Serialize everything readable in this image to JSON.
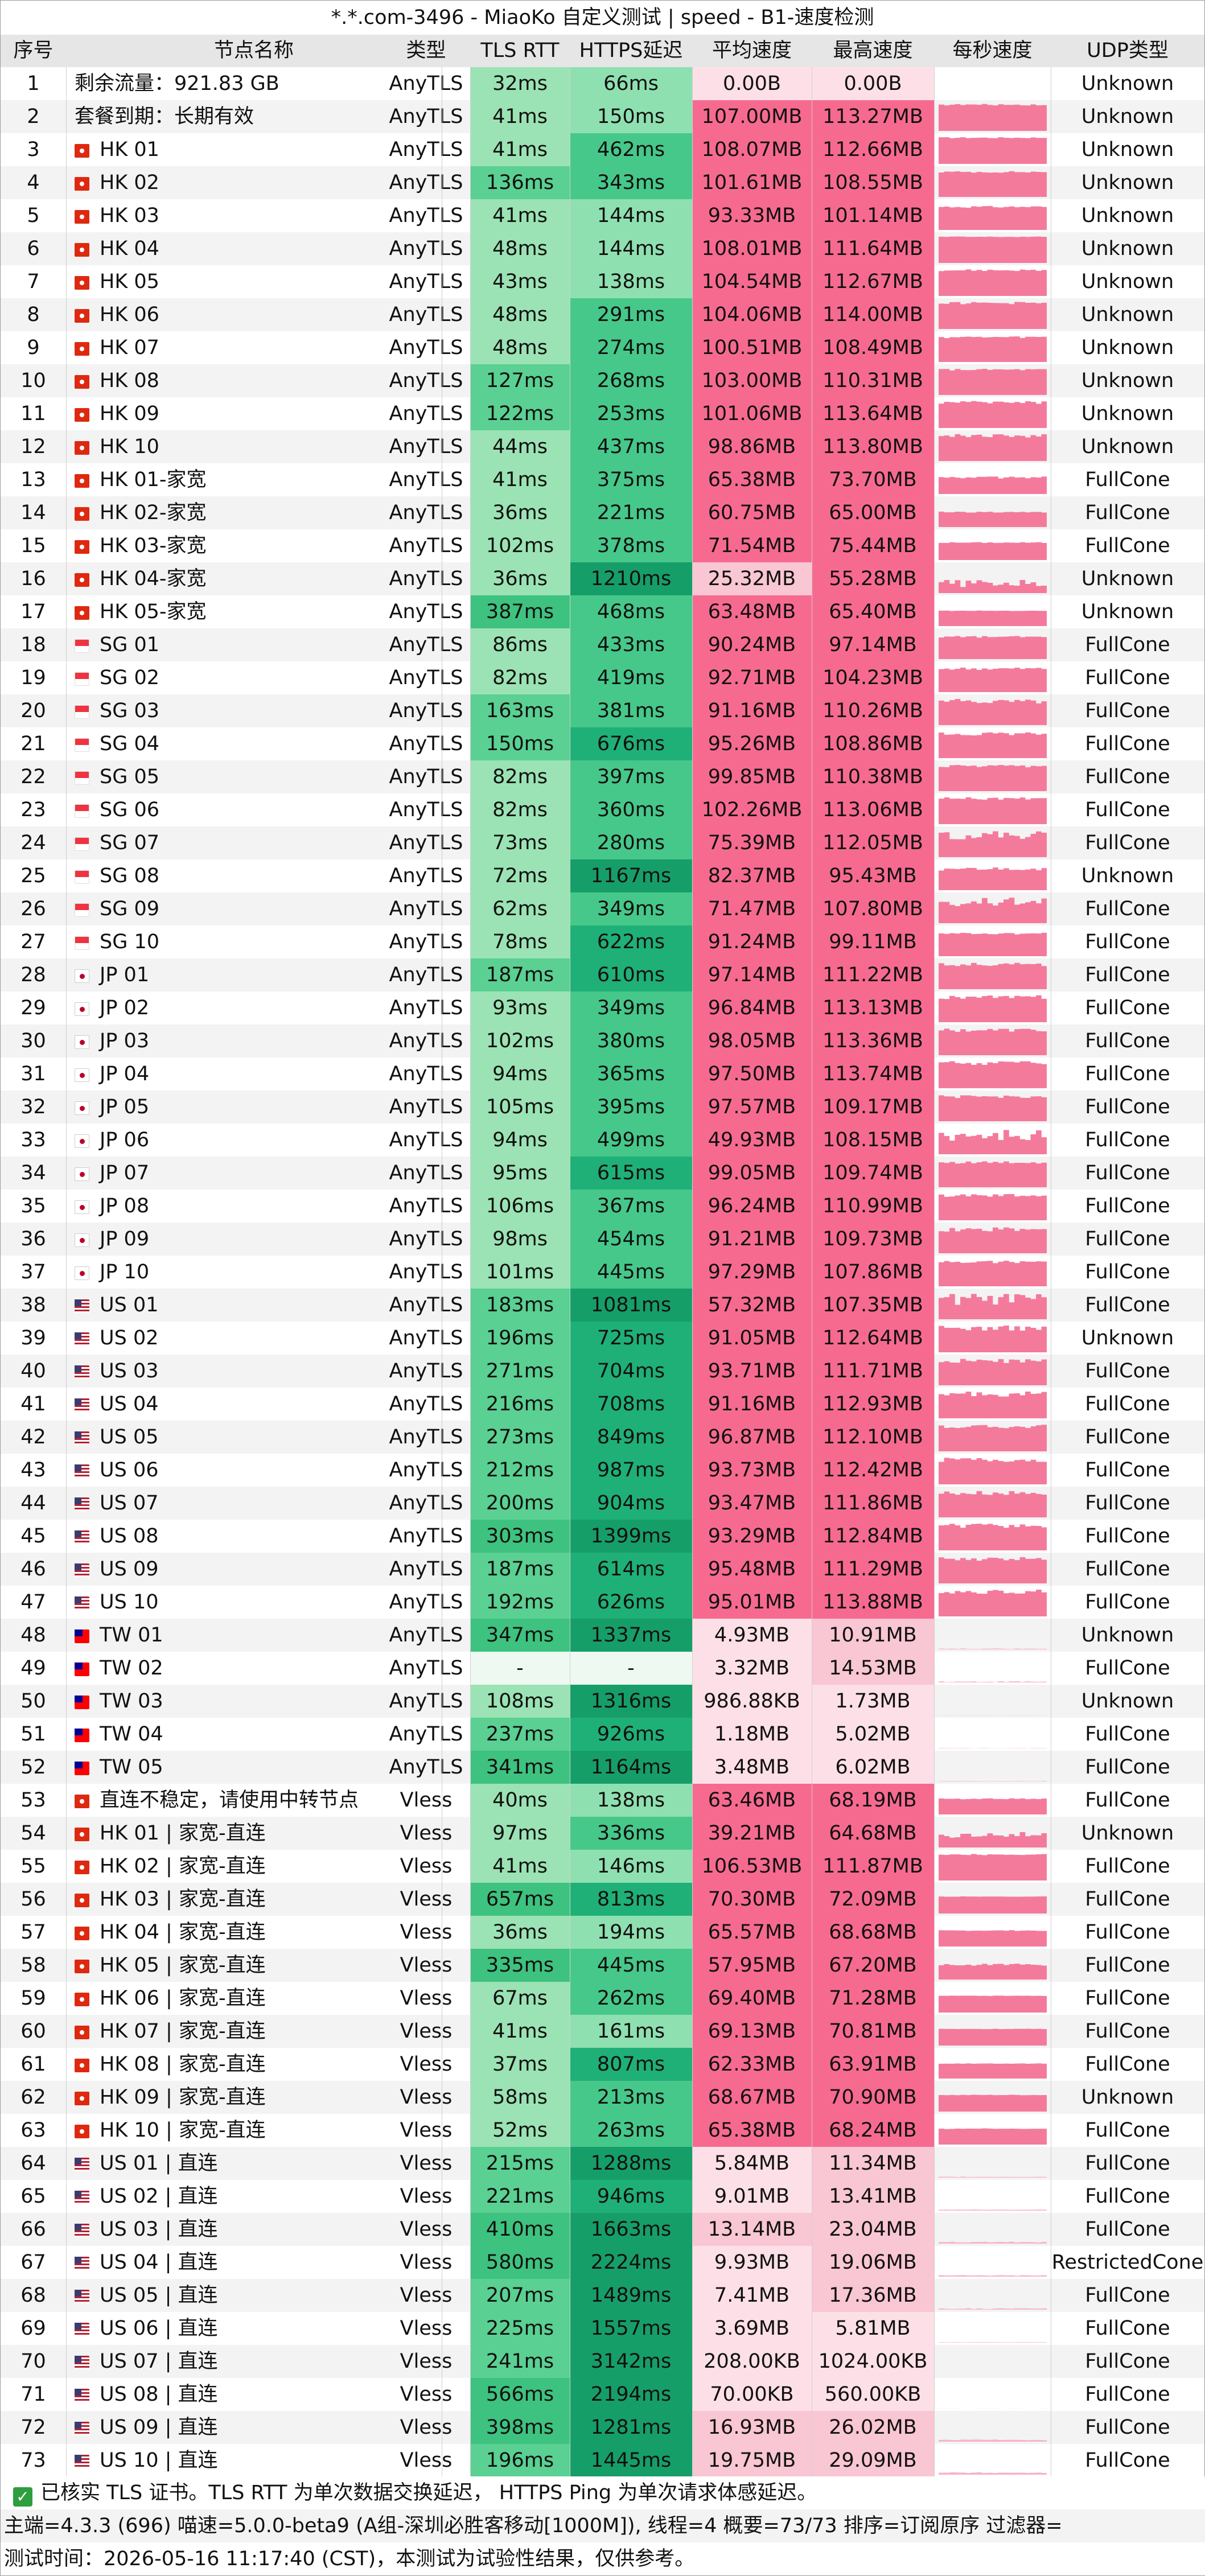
{
  "window": {
    "title": "*.*.com-3496 - MiaoKo 自定义测试 | speed - B1-速度检测"
  },
  "table": {
    "headers": [
      "序号",
      "节点名称",
      "类型",
      "TLS RTT",
      "HTTPS延迟",
      "平均速度",
      "最高速度",
      "每秒速度",
      "UDP类型"
    ],
    "rows": [
      [
        "1",
        "剩余流量：921.83 GB",
        "AnyTLS",
        "32ms",
        "66ms",
        "0.00B",
        "0.00B",
        "",
        "Unknown"
      ],
      [
        "2",
        "套餐到期：长期有效",
        "AnyTLS",
        "41ms",
        "150ms",
        "107.00MB",
        "113.27MB",
        "",
        "Unknown"
      ],
      [
        "3",
        "HK 01",
        "AnyTLS",
        "41ms",
        "462ms",
        "108.07MB",
        "112.66MB",
        "",
        "Unknown"
      ],
      [
        "4",
        "HK 02",
        "AnyTLS",
        "136ms",
        "343ms",
        "101.61MB",
        "108.55MB",
        "",
        "Unknown"
      ],
      [
        "5",
        "HK 03",
        "AnyTLS",
        "41ms",
        "144ms",
        "93.33MB",
        "101.14MB",
        "",
        "Unknown"
      ],
      [
        "6",
        "HK 04",
        "AnyTLS",
        "48ms",
        "144ms",
        "108.01MB",
        "111.64MB",
        "",
        "Unknown"
      ],
      [
        "7",
        "HK 05",
        "AnyTLS",
        "43ms",
        "138ms",
        "104.54MB",
        "112.67MB",
        "",
        "Unknown"
      ],
      [
        "8",
        "HK 06",
        "AnyTLS",
        "48ms",
        "291ms",
        "104.06MB",
        "114.00MB",
        "",
        "Unknown"
      ],
      [
        "9",
        "HK 07",
        "AnyTLS",
        "48ms",
        "274ms",
        "100.51MB",
        "108.49MB",
        "",
        "Unknown"
      ],
      [
        "10",
        "HK 08",
        "AnyTLS",
        "127ms",
        "268ms",
        "103.00MB",
        "110.31MB",
        "",
        "Unknown"
      ],
      [
        "11",
        "HK 09",
        "AnyTLS",
        "122ms",
        "253ms",
        "101.06MB",
        "113.64MB",
        "",
        "Unknown"
      ],
      [
        "12",
        "HK 10",
        "AnyTLS",
        "44ms",
        "437ms",
        "98.86MB",
        "113.80MB",
        "",
        "Unknown"
      ],
      [
        "13",
        "HK 01-家宽",
        "AnyTLS",
        "41ms",
        "375ms",
        "65.38MB",
        "73.70MB",
        "",
        "FullCone"
      ],
      [
        "14",
        "HK 02-家宽",
        "AnyTLS",
        "36ms",
        "221ms",
        "60.75MB",
        "65.00MB",
        "",
        "FullCone"
      ],
      [
        "15",
        "HK 03-家宽",
        "AnyTLS",
        "102ms",
        "378ms",
        "71.54MB",
        "75.44MB",
        "",
        "FullCone"
      ],
      [
        "16",
        "HK 04-家宽",
        "AnyTLS",
        "36ms",
        "1210ms",
        "25.32MB",
        "55.28MB",
        "",
        "Unknown"
      ],
      [
        "17",
        "HK 05-家宽",
        "AnyTLS",
        "387ms",
        "468ms",
        "63.48MB",
        "65.40MB",
        "",
        "Unknown"
      ],
      [
        "18",
        "SG 01",
        "AnyTLS",
        "86ms",
        "433ms",
        "90.24MB",
        "97.14MB",
        "",
        "FullCone"
      ],
      [
        "19",
        "SG 02",
        "AnyTLS",
        "82ms",
        "419ms",
        "92.71MB",
        "104.23MB",
        "",
        "FullCone"
      ],
      [
        "20",
        "SG 03",
        "AnyTLS",
        "163ms",
        "381ms",
        "91.16MB",
        "110.26MB",
        "",
        "FullCone"
      ],
      [
        "21",
        "SG 04",
        "AnyTLS",
        "150ms",
        "676ms",
        "95.26MB",
        "108.86MB",
        "",
        "FullCone"
      ],
      [
        "22",
        "SG 05",
        "AnyTLS",
        "82ms",
        "397ms",
        "99.85MB",
        "110.38MB",
        "",
        "FullCone"
      ],
      [
        "23",
        "SG 06",
        "AnyTLS",
        "82ms",
        "360ms",
        "102.26MB",
        "113.06MB",
        "",
        "FullCone"
      ],
      [
        "24",
        "SG 07",
        "AnyTLS",
        "73ms",
        "280ms",
        "75.39MB",
        "112.05MB",
        "",
        "FullCone"
      ],
      [
        "25",
        "SG 08",
        "AnyTLS",
        "72ms",
        "1167ms",
        "82.37MB",
        "95.43MB",
        "",
        "Unknown"
      ],
      [
        "26",
        "SG 09",
        "AnyTLS",
        "62ms",
        "349ms",
        "71.47MB",
        "107.80MB",
        "",
        "FullCone"
      ],
      [
        "27",
        "SG 10",
        "AnyTLS",
        "78ms",
        "622ms",
        "91.24MB",
        "99.11MB",
        "",
        "FullCone"
      ],
      [
        "28",
        "JP 01",
        "AnyTLS",
        "187ms",
        "610ms",
        "97.14MB",
        "111.22MB",
        "",
        "FullCone"
      ],
      [
        "29",
        "JP 02",
        "AnyTLS",
        "93ms",
        "349ms",
        "96.84MB",
        "113.13MB",
        "",
        "FullCone"
      ],
      [
        "30",
        "JP 03",
        "AnyTLS",
        "102ms",
        "380ms",
        "98.05MB",
        "113.36MB",
        "",
        "FullCone"
      ],
      [
        "31",
        "JP 04",
        "AnyTLS",
        "94ms",
        "365ms",
        "97.50MB",
        "113.74MB",
        "",
        "FullCone"
      ],
      [
        "32",
        "JP 05",
        "AnyTLS",
        "105ms",
        "395ms",
        "97.57MB",
        "109.17MB",
        "",
        "FullCone"
      ],
      [
        "33",
        "JP 06",
        "AnyTLS",
        "94ms",
        "499ms",
        "49.93MB",
        "108.15MB",
        "",
        "FullCone"
      ],
      [
        "34",
        "JP 07",
        "AnyTLS",
        "95ms",
        "615ms",
        "99.05MB",
        "109.74MB",
        "",
        "FullCone"
      ],
      [
        "35",
        "JP 08",
        "AnyTLS",
        "106ms",
        "367ms",
        "96.24MB",
        "110.99MB",
        "",
        "FullCone"
      ],
      [
        "36",
        "JP 09",
        "AnyTLS",
        "98ms",
        "454ms",
        "91.21MB",
        "109.73MB",
        "",
        "FullCone"
      ],
      [
        "37",
        "JP 10",
        "AnyTLS",
        "101ms",
        "445ms",
        "97.29MB",
        "107.86MB",
        "",
        "FullCone"
      ],
      [
        "38",
        "US 01",
        "AnyTLS",
        "183ms",
        "1081ms",
        "57.32MB",
        "107.35MB",
        "",
        "FullCone"
      ],
      [
        "39",
        "US 02",
        "AnyTLS",
        "196ms",
        "725ms",
        "91.05MB",
        "112.64MB",
        "",
        "Unknown"
      ],
      [
        "40",
        "US 03",
        "AnyTLS",
        "271ms",
        "704ms",
        "93.71MB",
        "111.71MB",
        "",
        "FullCone"
      ],
      [
        "41",
        "US 04",
        "AnyTLS",
        "216ms",
        "708ms",
        "91.16MB",
        "112.93MB",
        "",
        "FullCone"
      ],
      [
        "42",
        "US 05",
        "AnyTLS",
        "273ms",
        "849ms",
        "96.87MB",
        "112.10MB",
        "",
        "FullCone"
      ],
      [
        "43",
        "US 06",
        "AnyTLS",
        "212ms",
        "987ms",
        "93.73MB",
        "112.42MB",
        "",
        "FullCone"
      ],
      [
        "44",
        "US 07",
        "AnyTLS",
        "200ms",
        "904ms",
        "93.47MB",
        "111.86MB",
        "",
        "FullCone"
      ],
      [
        "45",
        "US 08",
        "AnyTLS",
        "303ms",
        "1399ms",
        "93.29MB",
        "112.84MB",
        "",
        "FullCone"
      ],
      [
        "46",
        "US 09",
        "AnyTLS",
        "187ms",
        "614ms",
        "95.48MB",
        "111.29MB",
        "",
        "FullCone"
      ],
      [
        "47",
        "US 10",
        "AnyTLS",
        "192ms",
        "626ms",
        "95.01MB",
        "113.88MB",
        "",
        "FullCone"
      ],
      [
        "48",
        "TW 01",
        "AnyTLS",
        "347ms",
        "1337ms",
        "4.93MB",
        "10.91MB",
        "",
        "Unknown"
      ],
      [
        "49",
        "TW 02",
        "AnyTLS",
        "-",
        "-",
        "3.32MB",
        "14.53MB",
        "",
        "FullCone"
      ],
      [
        "50",
        "TW 03",
        "AnyTLS",
        "108ms",
        "1316ms",
        "986.88KB",
        "1.73MB",
        "",
        "Unknown"
      ],
      [
        "51",
        "TW 04",
        "AnyTLS",
        "237ms",
        "926ms",
        "1.18MB",
        "5.02MB",
        "",
        "FullCone"
      ],
      [
        "52",
        "TW 05",
        "AnyTLS",
        "341ms",
        "1164ms",
        "3.48MB",
        "6.02MB",
        "",
        "FullCone"
      ],
      [
        "53",
        "直连不稳定，请使用中转节点",
        "Vless",
        "40ms",
        "138ms",
        "63.46MB",
        "68.19MB",
        "",
        "FullCone"
      ],
      [
        "54",
        "HK 01 | 家宽-直连",
        "Vless",
        "97ms",
        "336ms",
        "39.21MB",
        "64.68MB",
        "",
        "Unknown"
      ],
      [
        "55",
        "HK 02 | 家宽-直连",
        "Vless",
        "41ms",
        "146ms",
        "106.53MB",
        "111.87MB",
        "",
        "FullCone"
      ],
      [
        "56",
        "HK 03 | 家宽-直连",
        "Vless",
        "657ms",
        "813ms",
        "70.30MB",
        "72.09MB",
        "",
        "FullCone"
      ],
      [
        "57",
        "HK 04 | 家宽-直连",
        "Vless",
        "36ms",
        "194ms",
        "65.57MB",
        "68.68MB",
        "",
        "FullCone"
      ],
      [
        "58",
        "HK 05 | 家宽-直连",
        "Vless",
        "335ms",
        "445ms",
        "57.95MB",
        "67.20MB",
        "",
        "FullCone"
      ],
      [
        "59",
        "HK 06 | 家宽-直连",
        "Vless",
        "67ms",
        "262ms",
        "69.40MB",
        "71.28MB",
        "",
        "FullCone"
      ],
      [
        "60",
        "HK 07 | 家宽-直连",
        "Vless",
        "41ms",
        "161ms",
        "69.13MB",
        "70.81MB",
        "",
        "FullCone"
      ],
      [
        "61",
        "HK 08 | 家宽-直连",
        "Vless",
        "37ms",
        "807ms",
        "62.33MB",
        "63.91MB",
        "",
        "FullCone"
      ],
      [
        "62",
        "HK 09 | 家宽-直连",
        "Vless",
        "58ms",
        "213ms",
        "68.67MB",
        "70.90MB",
        "",
        "Unknown"
      ],
      [
        "63",
        "HK 10 | 家宽-直连",
        "Vless",
        "52ms",
        "263ms",
        "65.38MB",
        "68.24MB",
        "",
        "FullCone"
      ],
      [
        "64",
        "US 01 | 直连",
        "Vless",
        "215ms",
        "1288ms",
        "5.84MB",
        "11.34MB",
        "",
        "FullCone"
      ],
      [
        "65",
        "US 02 | 直连",
        "Vless",
        "221ms",
        "946ms",
        "9.01MB",
        "13.41MB",
        "",
        "FullCone"
      ],
      [
        "66",
        "US 03 | 直连",
        "Vless",
        "410ms",
        "1663ms",
        "13.14MB",
        "23.04MB",
        "",
        "FullCone"
      ],
      [
        "67",
        "US 04 | 直连",
        "Vless",
        "580ms",
        "2224ms",
        "9.93MB",
        "19.06MB",
        "",
        "RestrictedCone"
      ],
      [
        "68",
        "US 05 | 直连",
        "Vless",
        "207ms",
        "1489ms",
        "7.41MB",
        "17.36MB",
        "",
        "FullCone"
      ],
      [
        "69",
        "US 06 | 直连",
        "Vless",
        "225ms",
        "1557ms",
        "3.69MB",
        "5.81MB",
        "",
        "FullCone"
      ],
      [
        "70",
        "US 07 | 直连",
        "Vless",
        "241ms",
        "3142ms",
        "208.00KB",
        "1024.00KB",
        "",
        "FullCone"
      ],
      [
        "71",
        "US 08 | 直连",
        "Vless",
        "566ms",
        "2194ms",
        "70.00KB",
        "560.00KB",
        "",
        "FullCone"
      ],
      [
        "72",
        "US 09 | 直连",
        "Vless",
        "398ms",
        "1281ms",
        "16.93MB",
        "26.02MB",
        "",
        "FullCone"
      ],
      [
        "73",
        "US 10 | 直连",
        "Vless",
        "196ms",
        "1445ms",
        "19.75MB",
        "29.09MB",
        "",
        "FullCone"
      ]
    ],
    "flags": [
      "",
      "",
      "hk",
      "hk",
      "hk",
      "hk",
      "hk",
      "hk",
      "hk",
      "hk",
      "hk",
      "hk",
      "hk",
      "hk",
      "hk",
      "hk",
      "hk",
      "sg",
      "sg",
      "sg",
      "sg",
      "sg",
      "sg",
      "sg",
      "sg",
      "sg",
      "sg",
      "jp",
      "jp",
      "jp",
      "jp",
      "jp",
      "jp",
      "jp",
      "jp",
      "jp",
      "jp",
      "us",
      "us",
      "us",
      "us",
      "us",
      "us",
      "us",
      "us",
      "us",
      "us",
      "tw",
      "tw",
      "tw",
      "tw",
      "tw",
      "hk",
      "hk",
      "hk",
      "hk",
      "hk",
      "hk",
      "hk",
      "hk",
      "hk",
      "hk",
      "hk",
      "us",
      "us",
      "us",
      "us",
      "us",
      "us",
      "us",
      "us",
      "us",
      "us"
    ]
  },
  "footer": {
    "check_icon": "check-icon",
    "note": "已核实 TLS 证书。TLS RTT 为单次数据交换延迟， HTTPS Ping 为单次请求体感延迟。",
    "info": "主端=4.3.3 (696) 喵速=5.0.0-beta9 (A组-深圳必胜客移动[1000M]), 线程=4 概要=73/73 排序=订阅原序 过滤器=",
    "time": "测试时间：2026-05-16 11:17:40 (CST)，本测试为试验性结果，仅供参考。"
  },
  "colors": {
    "header_bg": "#e6e6e6",
    "check": "#2e9e3e",
    "spark": "#f47a9c"
  }
}
